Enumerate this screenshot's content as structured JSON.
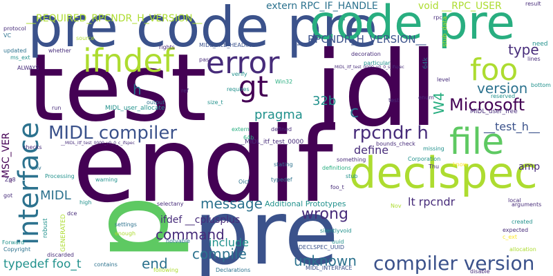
{
  "title": "word cloud",
  "palette": {
    "dark_purple": "#440154",
    "indigo": "#472c7a",
    "blue": "#3b528b",
    "slate": "#2c728e",
    "teal": "#21918c",
    "sea_green": "#28ae80",
    "green": "#5ec962",
    "lime": "#addc30",
    "yellow": "#fde725"
  },
  "words": {
    "test": "test",
    "idl": "idl",
    "endif": "endif",
    "p": "p",
    "pre": "pre",
    "pre_code_pre": "pre code pre",
    "code_pre": "code pre",
    "declspec": "declspec",
    "file": "file",
    "interface": "interface",
    "error": "error",
    "ifndef": "ifndef",
    "foo": "foo",
    "gt": "gt",
    "midl_compiler": "MIDL compiler",
    "compiler_version": "compiler version",
    "rpcndr_h": "rpcndr h",
    "microsoft": "Microsoft",
    "message": "message",
    "command": "command",
    "compile": "compile",
    "wrong": "wrong",
    "unknown": "unknown",
    "end": "end",
    "typedef_foo_t": "typedef foo_t",
    "include": "include",
    "version": "version",
    "type": "type",
    "pragma": "pragma",
    "define": "define",
    "lt_rpcndr": "lt rpcndr",
    "ifdef_cplusplus": "ifdef __cplusplus",
    "midl": "MIDL",
    "amp": "amp",
    "c": "c",
    "h": "h",
    "w4": "W4",
    "32b": "32b",
    "test_h": "__test_h__",
    "required_rpcndr": "__REQUIRED_RPCNDR_H_VERSION__",
    "rpcndr_h_version": "__RPCNDR_H_VERSION__",
    "extern_rpc_if_handle": "extern RPC_IF_HANDLE",
    "void_rpc_user": "void __RPC_USER",
    "msc_ver": "_MSC_VER",
    "additional_prototypes": "Additional Prototypes",
    "midl_user_allocate": "MIDL_user_allocate",
    "midl_itf_test_0000": "__MIDL_itf_test_0000",
    "midl_itf_ifspec": "__MIDL_itf_test_0000_v0_0_c_ifspec",
    "midl_itf_sifspec": "__MIDL_itf_test_0000_v0_0_s_ifspec",
    "midl_file_heading": "MIDL_FILE_HEADING",
    "midl_user_free": "MIDL_user_free",
    "midl_interface": "MIDL_INTERFACE",
    "declspec_uuid": "DECLSPEC_UUID",
    "bounds_check": "bounds_check",
    "something": "something",
    "corporation": "Corporation",
    "definitions": "definitions",
    "stating": "stating",
    "typedef": "typedef",
    "oicf": "Oicf",
    "foo_t": "foo_t",
    "stub": "stub",
    "stub_data": "stub_data",
    "missing": "missing",
    "processing": "Processing",
    "warning": "warning",
    "selectany": "selectany",
    "silentlyvoid": "silentlyvoid",
    "uuid": "uuid",
    "notvable": "notvable",
    "settings": "settings",
    "enough": "enough",
    "output": "output",
    "following": "following",
    "declarations": "Declarations",
    "contains": "contains",
    "high": "high",
    "dce": "dce",
    "robust": "robust",
    "generated": "GENERATED",
    "discarded": "discarded",
    "copyright": "Copyright",
    "forward": "Forward",
    "got": "got",
    "zp8": "Zp8",
    "env": "env",
    "checks": "checks",
    "run": "run",
    "always": "ALWAYS",
    "ms_ext": "ms_ext",
    "updated": "updated",
    "vc": "VC",
    "protocol": "protocol",
    "source": "source",
    "whether": "whether",
    "rights": "rights",
    "pass": "pass",
    "ref": "ref",
    "verify": "verify",
    "requires": "requires",
    "win32": "Win32",
    "size_t": "size_t",
    "extern": "extern",
    "64b": "64b",
    "defined": "defined",
    "decoration": "decoration",
    "particular": "particular",
    "level": "level",
    "rpc": "rpc",
    "need": "need",
    "result": "result",
    "lines": "lines",
    "bottom": "bottom",
    "reserved": "reserved",
    "enum": "enum",
    "know": "know",
    "thu": "Thu",
    "nov": "Nov",
    "local": "local",
    "arguments": "arguments",
    "created": "created",
    "expected": "expected",
    "c_ext": "c_ext",
    "allocation": "allocation",
    "disable": "disable",
    "64k": "64k",
    "ifm": "ifm",
    "test_small": "test"
  }
}
